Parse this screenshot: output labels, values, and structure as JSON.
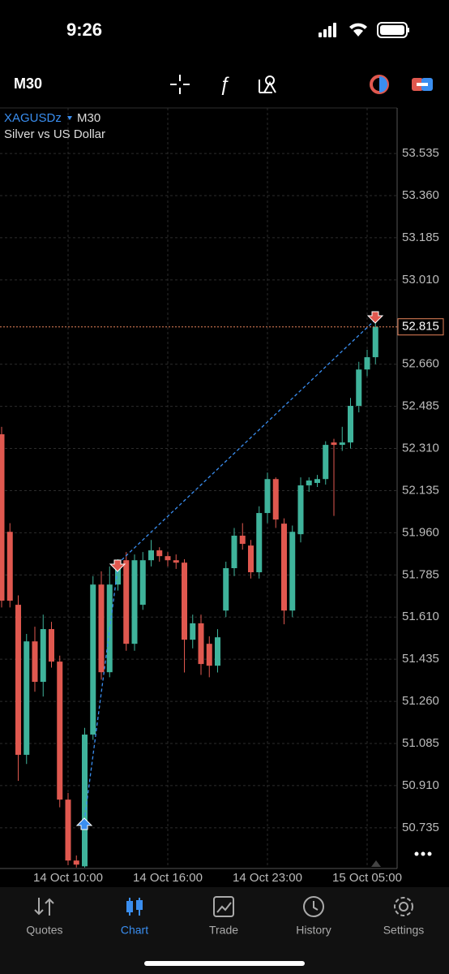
{
  "status_bar": {
    "time": "9:26"
  },
  "toolbar": {
    "timeframe": "M30"
  },
  "chart_header": {
    "symbol": "XAGUSDz",
    "timeframe": "M30",
    "description": "Silver vs US Dollar"
  },
  "chart_data": {
    "type": "candlestick",
    "categories": [
      null,
      null,
      null,
      null,
      null,
      null,
      null,
      null,
      "14 Oct 10:00",
      null,
      null,
      null,
      null,
      null,
      null,
      null,
      null,
      null,
      null,
      null,
      "14 Oct 16:00",
      null,
      null,
      null,
      null,
      null,
      null,
      null,
      null,
      null,
      null,
      null,
      "14 Oct 23:00",
      null,
      null,
      null,
      null,
      null,
      null,
      null,
      null,
      null,
      null,
      null,
      "15 Oct 05:00",
      null
    ],
    "open": [
      52.369,
      51.964,
      51.661,
      51.038,
      51.509,
      51.341,
      51.56,
      51.425,
      50.852,
      50.599,
      50.575,
      51.122,
      51.745,
      51.381,
      51.745,
      51.846,
      51.499,
      51.661,
      51.846,
      51.887,
      51.863,
      51.846,
      51.836,
      51.516,
      51.584,
      51.499,
      51.408,
      51.637,
      51.813,
      51.948,
      51.907,
      51.796,
      52.042,
      52.183,
      51.998,
      51.637,
      51.954,
      52.157,
      52.167,
      52.183,
      52.335,
      52.325,
      52.335,
      52.487,
      52.638,
      52.689
    ],
    "high": [
      52.4,
      52.0,
      51.7,
      51.54,
      51.57,
      51.62,
      51.59,
      51.45,
      50.88,
      50.62,
      51.15,
      51.78,
      51.8,
      51.82,
      51.85,
      51.88,
      51.87,
      51.88,
      51.93,
      51.9,
      51.88,
      51.87,
      51.85,
      51.62,
      51.62,
      51.53,
      51.56,
      51.84,
      51.98,
      52.0,
      51.93,
      52.07,
      52.21,
      52.19,
      52.02,
      51.99,
      52.19,
      52.19,
      52.2,
      52.34,
      52.35,
      52.4,
      52.52,
      52.67,
      52.72,
      52.84
    ],
    "low": [
      51.65,
      51.65,
      50.93,
      51.0,
      51.3,
      51.28,
      51.4,
      50.82,
      50.58,
      50.57,
      50.57,
      51.1,
      51.35,
      51.36,
      51.72,
      51.47,
      51.47,
      51.64,
      51.82,
      51.84,
      51.82,
      51.81,
      51.38,
      51.48,
      51.37,
      51.36,
      51.38,
      51.61,
      51.78,
      51.89,
      51.77,
      51.77,
      52.0,
      51.98,
      51.58,
      51.61,
      51.92,
      52.13,
      52.15,
      52.16,
      52.03,
      52.3,
      52.31,
      52.46,
      52.61,
      52.66
    ],
    "close": [
      51.678,
      51.678,
      51.038,
      51.509,
      51.341,
      51.56,
      51.425,
      50.852,
      50.599,
      50.582,
      51.122,
      51.745,
      51.381,
      51.745,
      51.813,
      51.499,
      51.846,
      51.846,
      51.887,
      51.863,
      51.846,
      51.836,
      51.516,
      51.584,
      51.415,
      51.408,
      51.526,
      51.813,
      51.948,
      51.914,
      51.796,
      52.042,
      52.183,
      52.015,
      51.637,
      51.964,
      52.157,
      52.177,
      52.183,
      52.325,
      52.325,
      52.335,
      52.487,
      52.638,
      52.689,
      52.815
    ],
    "up_color": "#3fb39b",
    "down_color": "#e0584f",
    "ylim": [
      50.566,
      53.724
    ],
    "yticks": [
      53.535,
      {
        "value": 53.36,
        "label": "53.360"
      },
      53.185,
      {
        "value": 53.01,
        "label": "53.010"
      },
      {
        "value": 52.66,
        "label": "52.660"
      },
      52.485,
      {
        "value": 52.31,
        "label": "52.310"
      },
      52.135,
      {
        "value": 51.96,
        "label": "51.960"
      },
      51.785,
      {
        "value": 51.61,
        "label": "51.610"
      },
      51.435,
      {
        "value": 51.26,
        "label": "51.260"
      },
      51.085,
      {
        "value": 50.91,
        "label": "50.910"
      },
      50.735
    ],
    "current_price": 52.815,
    "grid": true
  },
  "tabs": [
    "Quotes",
    "Chart",
    "Trade",
    "History",
    "Settings"
  ]
}
